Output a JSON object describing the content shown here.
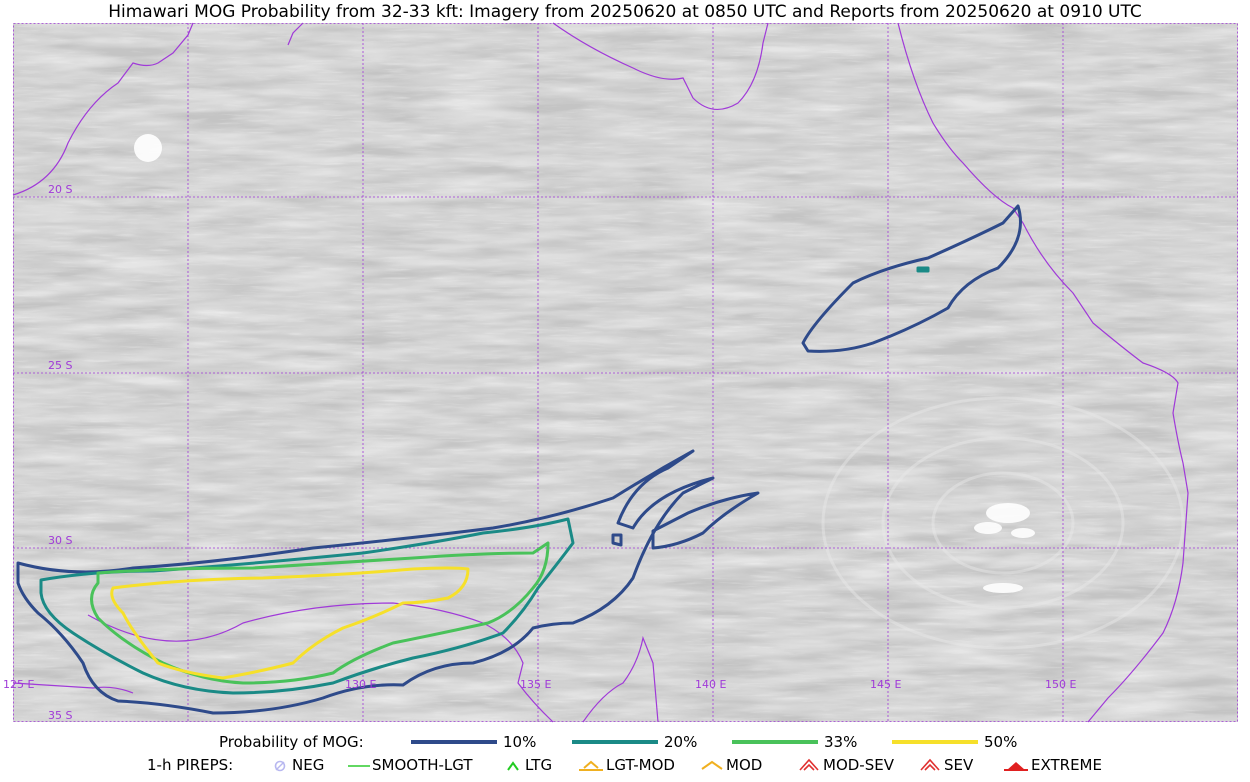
{
  "title": "Himawari MOG Probability from 32-33 kft: Imagery from 20250620 at 0850 UTC and Reports from 20250620 at 0910 UTC",
  "map": {
    "lat_labels": [
      "20 S",
      "25 S",
      "30 S",
      "35 S"
    ],
    "lon_labels": [
      "125 E",
      "130 E",
      "135 E",
      "140 E",
      "145 E",
      "150 E"
    ],
    "gridline_color": "#a03ad8",
    "coastline_color": "#a03ad8"
  },
  "legend": {
    "prob_label": "Probability of MOG:",
    "levels": [
      {
        "label": "10%",
        "color": "#2e4a8a"
      },
      {
        "label": "20%",
        "color": "#1a8a86"
      },
      {
        "label": "33%",
        "color": "#49c25a"
      },
      {
        "label": "50%",
        "color": "#f6e02a"
      }
    ],
    "pireps_label": "1-h PIREPS:",
    "pireps": [
      {
        "label": "NEG",
        "color": "#b8b8f0",
        "icon": "neg-circle-icon"
      },
      {
        "label": "SMOOTH-LGT",
        "color": "#2ecc2e",
        "icon": "line-icon"
      },
      {
        "label": "LTG",
        "color": "#22cc22",
        "icon": "caret-icon"
      },
      {
        "label": "LGT-MOD",
        "color": "#f0b020",
        "icon": "caret-bar-icon"
      },
      {
        "label": "MOD",
        "color": "#f0b020",
        "icon": "caret-icon"
      },
      {
        "label": "MOD-SEV",
        "color": "#e03030",
        "icon": "double-caret-icon"
      },
      {
        "label": "SEV",
        "color": "#e03030",
        "icon": "double-caret-icon"
      },
      {
        "label": "EXTREME",
        "color": "#e02020",
        "icon": "filled-triangle-icon"
      }
    ]
  }
}
